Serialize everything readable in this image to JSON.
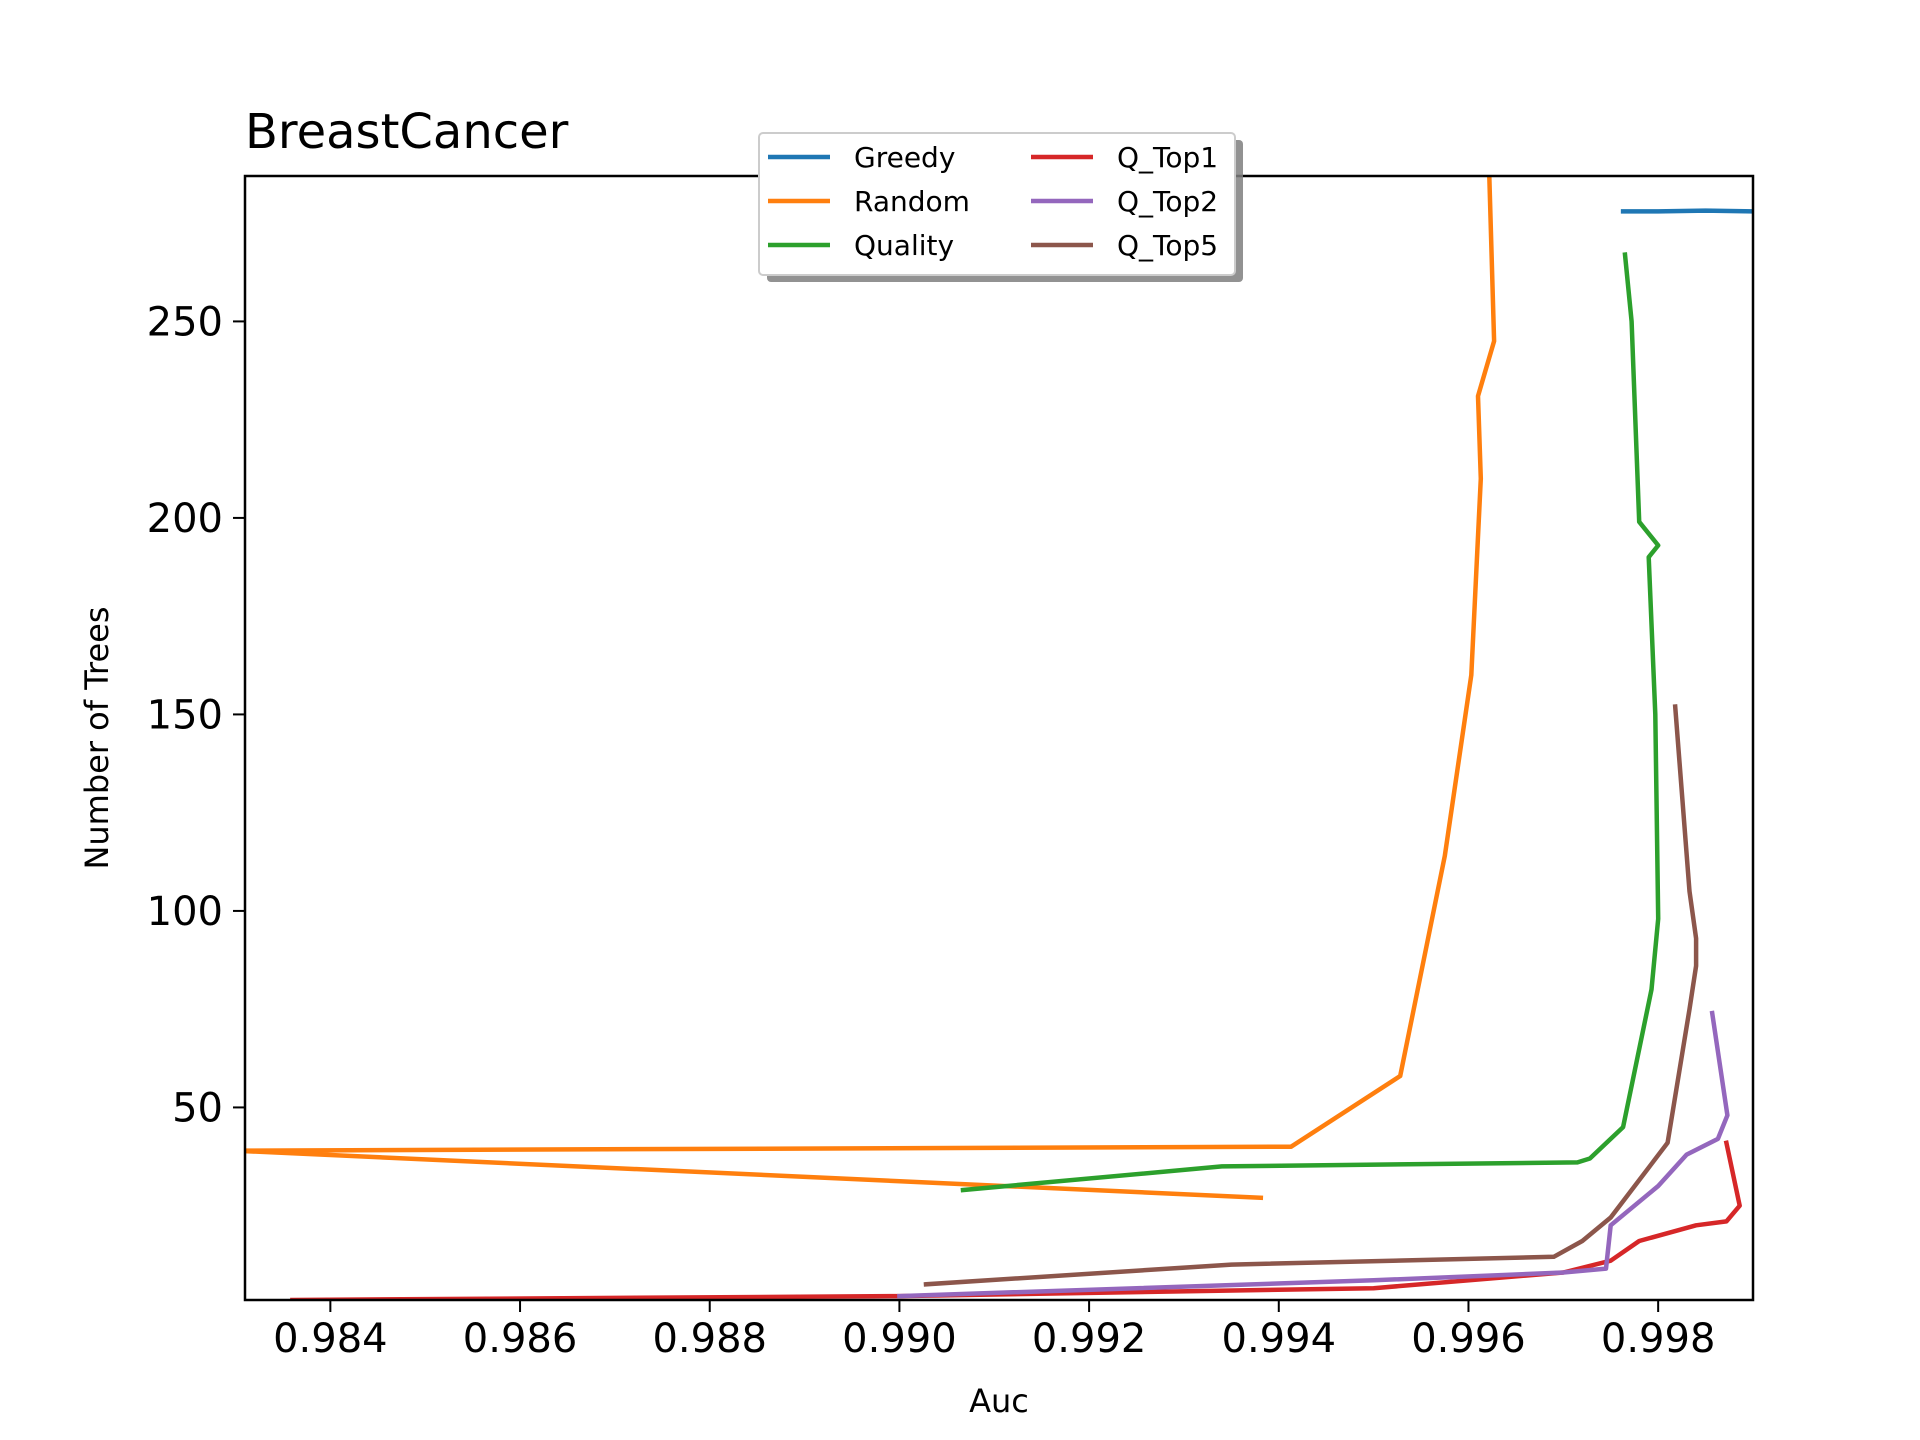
{
  "chart_data": {
    "type": "line",
    "title": "BreastCancer",
    "xlabel": "Auc",
    "ylabel": "Number of Trees",
    "xlim": [
      0.9831,
      0.999
    ],
    "ylim": [
      1,
      287
    ],
    "xticks": [
      0.984,
      0.986,
      0.988,
      0.99,
      0.992,
      0.994,
      0.996,
      0.998
    ],
    "xtick_labels": [
      "0.984",
      "0.986",
      "0.988",
      "0.990",
      "0.992",
      "0.994",
      "0.996",
      "0.998"
    ],
    "yticks": [
      50,
      100,
      150,
      200,
      250
    ],
    "ytick_labels": [
      "50",
      "100",
      "150",
      "200",
      "250"
    ],
    "grid": false,
    "legend_position": "top-center",
    "series": [
      {
        "name": "Greedy",
        "color": "#1f77b4",
        "points": [
          [
            0.99763,
            278
          ],
          [
            0.998,
            278
          ],
          [
            0.9985,
            278.2
          ],
          [
            0.999,
            278
          ]
        ]
      },
      {
        "name": "Random",
        "color": "#ff7f0e",
        "points": [
          [
            0.99381,
            27
          ],
          [
            0.983,
            39
          ],
          [
            0.99413,
            40
          ],
          [
            0.99528,
            58
          ],
          [
            0.99575,
            114
          ],
          [
            0.99603,
            160
          ],
          [
            0.99613,
            210
          ],
          [
            0.9961,
            231
          ],
          [
            0.99627,
            245
          ],
          [
            0.99622,
            287
          ]
        ]
      },
      {
        "name": "Quality",
        "color": "#2ca02c",
        "points": [
          [
            0.99067,
            29
          ],
          [
            0.9934,
            35
          ],
          [
            0.99715,
            36
          ],
          [
            0.99728,
            37
          ],
          [
            0.99763,
            45
          ],
          [
            0.99793,
            80
          ],
          [
            0.998,
            98
          ],
          [
            0.99797,
            150
          ],
          [
            0.9979,
            190
          ],
          [
            0.998,
            193
          ],
          [
            0.9978,
            199
          ],
          [
            0.99772,
            250
          ],
          [
            0.99765,
            267
          ]
        ]
      },
      {
        "name": "Q_Top1",
        "color": "#d62728",
        "points": [
          [
            0.9836,
            1
          ],
          [
            0.99,
            2
          ],
          [
            0.995,
            4
          ],
          [
            0.997,
            8
          ],
          [
            0.9975,
            11
          ],
          [
            0.9978,
            16
          ],
          [
            0.9984,
            20
          ],
          [
            0.99872,
            21
          ],
          [
            0.99886,
            25
          ],
          [
            0.99872,
            41
          ]
        ]
      },
      {
        "name": "Q_Top2",
        "color": "#9467bd",
        "points": [
          [
            0.99,
            2
          ],
          [
            0.995,
            6
          ],
          [
            0.997,
            8
          ],
          [
            0.99745,
            9
          ],
          [
            0.9975,
            20
          ],
          [
            0.998,
            30
          ],
          [
            0.9983,
            38
          ],
          [
            0.99863,
            42
          ],
          [
            0.99873,
            48
          ],
          [
            0.99857,
            74
          ]
        ]
      },
      {
        "name": "Q_Top5",
        "color": "#8c564b",
        "points": [
          [
            0.99028,
            5
          ],
          [
            0.9935,
            10
          ],
          [
            0.9969,
            12
          ],
          [
            0.9972,
            16
          ],
          [
            0.9975,
            22
          ],
          [
            0.9981,
            41
          ],
          [
            0.99833,
            75
          ],
          [
            0.9984,
            86
          ],
          [
            0.9984,
            93
          ],
          [
            0.99833,
            105
          ],
          [
            0.99818,
            152
          ]
        ]
      }
    ]
  }
}
